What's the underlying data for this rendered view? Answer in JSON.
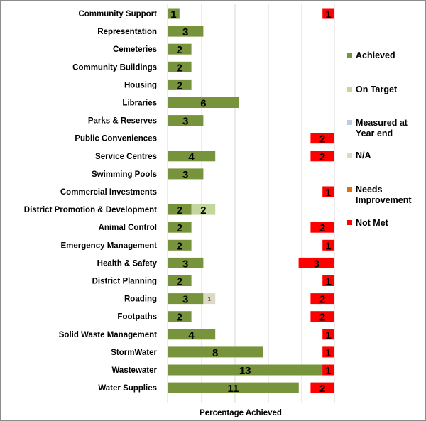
{
  "chart_data": {
    "type": "bar",
    "orientation": "horizontal",
    "stacked": true,
    "xlabel": "Percentage Achieved",
    "title": "",
    "grid": true,
    "legend_position": "right",
    "categories": [
      "Community Support",
      "Representation",
      "Cemeteries",
      "Community Buildings",
      "Housing",
      "Libraries",
      "Parks & Reserves",
      "Public Conveniences",
      "Service Centres",
      "Swimming Pools",
      "Commercial Investments",
      "District Promotion & Development",
      "Animal Control",
      "Emergency Management",
      "Health & Safety",
      "District Planning",
      "Roading",
      "Footpaths",
      "Solid Waste Management",
      "StormWater",
      "Wastewater",
      "Water Supplies"
    ],
    "series": [
      {
        "name": "Achieved",
        "color": "#77933c",
        "values": [
          1,
          3,
          2,
          2,
          2,
          6,
          3,
          0,
          4,
          3,
          0,
          2,
          2,
          2,
          3,
          2,
          3,
          2,
          4,
          8,
          13,
          11
        ]
      },
      {
        "name": "On Target",
        "color": "#c3d69b",
        "values": [
          0,
          0,
          0,
          0,
          0,
          0,
          0,
          0,
          0,
          0,
          0,
          2,
          0,
          0,
          0,
          0,
          0,
          0,
          0,
          0,
          0,
          0
        ]
      },
      {
        "name": "Measured at Year end",
        "color": "#b9cde5",
        "values": [
          0,
          0,
          0,
          0,
          0,
          0,
          0,
          0,
          0,
          0,
          0,
          0,
          0,
          0,
          0,
          0,
          0,
          0,
          0,
          0,
          0,
          0
        ]
      },
      {
        "name": "N/A",
        "color": "#ddd9c4",
        "values": [
          0,
          0,
          0,
          0,
          0,
          0,
          0,
          0,
          0,
          0,
          0,
          0,
          0,
          0,
          0,
          0,
          1,
          0,
          0,
          0,
          0,
          0
        ]
      },
      {
        "name": "Needs Improvement",
        "color": "#e46c0a",
        "values": [
          0,
          0,
          0,
          0,
          0,
          0,
          0,
          0,
          0,
          0,
          0,
          0,
          0,
          0,
          0,
          0,
          0,
          0,
          0,
          0,
          0,
          0
        ]
      },
      {
        "name": "Not Met",
        "color": "#ff0000",
        "values": [
          1,
          0,
          0,
          0,
          0,
          0,
          0,
          2,
          2,
          0,
          1,
          0,
          2,
          1,
          3,
          1,
          2,
          2,
          1,
          1,
          1,
          2
        ]
      }
    ]
  }
}
